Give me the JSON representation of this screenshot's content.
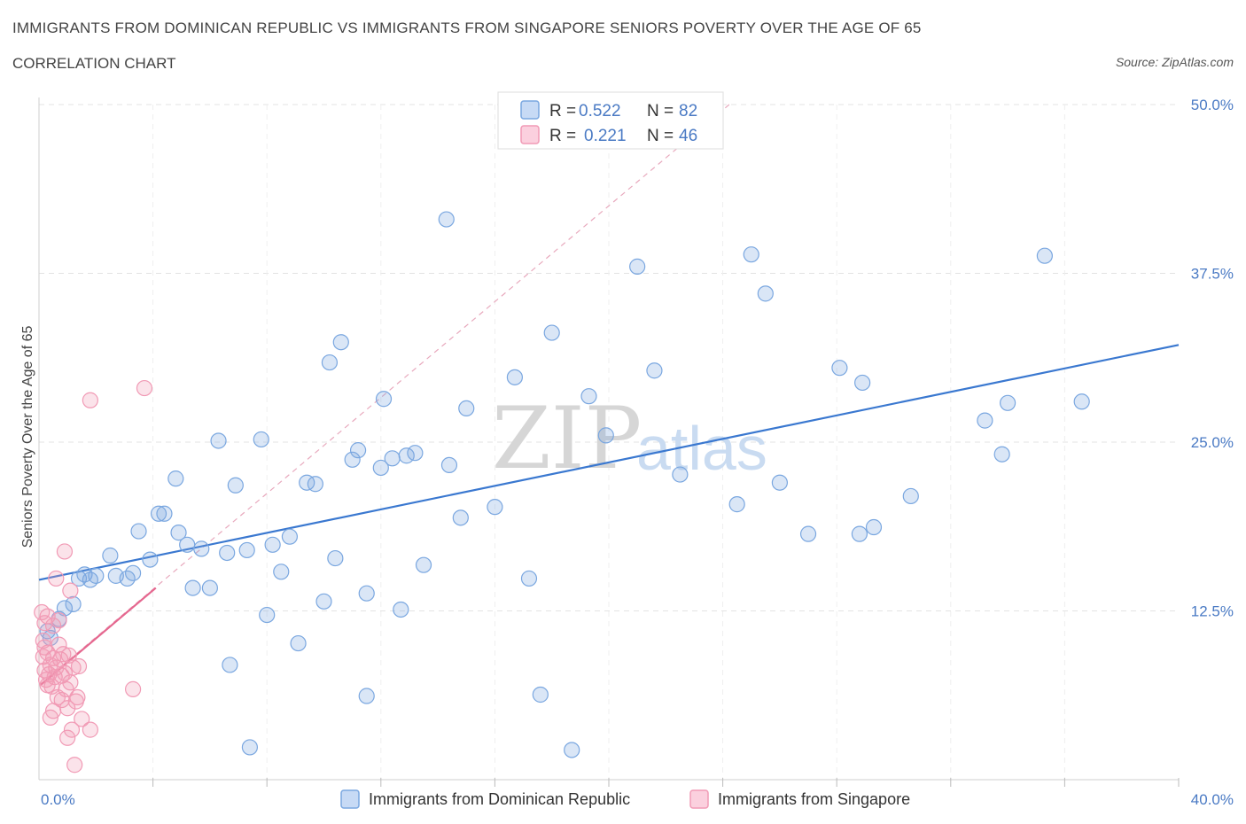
{
  "title": "IMMIGRANTS FROM DOMINICAN REPUBLIC VS IMMIGRANTS FROM SINGAPORE SENIORS POVERTY OVER THE AGE OF 65",
  "subtitle": "CORRELATION CHART",
  "source": "Source: ZipAtlas.com",
  "watermark": {
    "zip": "ZIP",
    "atlas": "atlas"
  },
  "chart_data": {
    "type": "scatter",
    "ylabel": "Seniors Poverty Over the Age of 65",
    "xlim": [
      0,
      40
    ],
    "ylim": [
      0,
      50
    ],
    "x_tick_labels": [
      {
        "value": 0,
        "label": "0.0%"
      },
      {
        "value": 40,
        "label": "40.0%"
      }
    ],
    "y_tick_labels": [
      {
        "value": 12.5,
        "label": "12.5%"
      },
      {
        "value": 25,
        "label": "25.0%"
      },
      {
        "value": 37.5,
        "label": "37.5%"
      },
      {
        "value": 50,
        "label": "50.0%"
      }
    ],
    "grid": true,
    "legend_position": "top-center",
    "series": [
      {
        "name": "Immigrants from Dominican Republic",
        "color": "#7aa7e0",
        "line_color": "#3a78d0",
        "R": "0.522",
        "N": "82",
        "trend": {
          "x": [
            0,
            40
          ],
          "y": [
            14.8,
            32.2
          ]
        },
        "points": [
          [
            0.4,
            10.5
          ],
          [
            0.7,
            11.9
          ],
          [
            0.9,
            12.7
          ],
          [
            1.2,
            13.0
          ],
          [
            1.4,
            14.9
          ],
          [
            1.6,
            15.2
          ],
          [
            1.8,
            14.8
          ],
          [
            2.0,
            15.1
          ],
          [
            2.5,
            16.6
          ],
          [
            2.7,
            15.1
          ],
          [
            3.1,
            14.9
          ],
          [
            3.3,
            15.3
          ],
          [
            3.5,
            18.4
          ],
          [
            3.9,
            16.3
          ],
          [
            4.2,
            19.7
          ],
          [
            4.4,
            19.7
          ],
          [
            4.8,
            22.3
          ],
          [
            4.9,
            18.3
          ],
          [
            5.2,
            17.4
          ],
          [
            5.4,
            14.2
          ],
          [
            5.7,
            17.1
          ],
          [
            6.0,
            14.2
          ],
          [
            6.3,
            25.1
          ],
          [
            6.6,
            16.8
          ],
          [
            6.7,
            8.5
          ],
          [
            6.9,
            21.8
          ],
          [
            7.3,
            17.0
          ],
          [
            7.4,
            2.4
          ],
          [
            7.8,
            25.2
          ],
          [
            8.0,
            12.2
          ],
          [
            8.2,
            17.4
          ],
          [
            8.5,
            15.4
          ],
          [
            8.8,
            18.0
          ],
          [
            9.1,
            10.1
          ],
          [
            9.4,
            22.0
          ],
          [
            9.7,
            21.9
          ],
          [
            10.0,
            13.2
          ],
          [
            10.2,
            30.9
          ],
          [
            10.4,
            16.4
          ],
          [
            10.6,
            32.4
          ],
          [
            11.0,
            23.7
          ],
          [
            11.2,
            24.4
          ],
          [
            11.5,
            6.2
          ],
          [
            11.5,
            13.8
          ],
          [
            12.0,
            23.1
          ],
          [
            12.1,
            28.2
          ],
          [
            12.4,
            23.8
          ],
          [
            12.7,
            12.6
          ],
          [
            12.9,
            24.0
          ],
          [
            13.2,
            24.2
          ],
          [
            13.5,
            15.9
          ],
          [
            14.3,
            41.5
          ],
          [
            14.4,
            23.3
          ],
          [
            14.8,
            19.4
          ],
          [
            15.0,
            27.5
          ],
          [
            16.0,
            20.2
          ],
          [
            16.7,
            29.8
          ],
          [
            17.2,
            14.9
          ],
          [
            17.6,
            6.3
          ],
          [
            18.0,
            33.1
          ],
          [
            18.7,
            2.2
          ],
          [
            19.3,
            28.4
          ],
          [
            19.9,
            25.5
          ],
          [
            21.0,
            38.0
          ],
          [
            21.6,
            30.3
          ],
          [
            22.5,
            22.6
          ],
          [
            24.5,
            20.4
          ],
          [
            25.0,
            38.9
          ],
          [
            25.5,
            36.0
          ],
          [
            26.0,
            22.0
          ],
          [
            27.0,
            18.2
          ],
          [
            28.1,
            30.5
          ],
          [
            28.8,
            18.2
          ],
          [
            28.9,
            29.4
          ],
          [
            29.3,
            18.7
          ],
          [
            30.6,
            21.0
          ],
          [
            33.2,
            26.6
          ],
          [
            33.8,
            24.1
          ],
          [
            34.0,
            27.9
          ],
          [
            35.3,
            38.8
          ],
          [
            36.6,
            28.0
          ],
          [
            0.3,
            11.0
          ]
        ]
      },
      {
        "name": "Immigrants from Singapore",
        "color": "#f19ab5",
        "line_color": "#e5678f",
        "R": "0.221",
        "N": "46",
        "trend": {
          "x": [
            0.05,
            4.1
          ],
          "y": [
            7.0,
            14.2
          ]
        },
        "dashed_trend": {
          "x": [
            0,
            40
          ],
          "y": [
            7.0,
            78.0
          ]
        },
        "points": [
          [
            0.1,
            12.4
          ],
          [
            0.15,
            10.3
          ],
          [
            0.2,
            9.8
          ],
          [
            0.2,
            8.1
          ],
          [
            0.25,
            7.4
          ],
          [
            0.3,
            12.1
          ],
          [
            0.3,
            9.4
          ],
          [
            0.35,
            7.8
          ],
          [
            0.4,
            8.5
          ],
          [
            0.45,
            6.9
          ],
          [
            0.5,
            11.4
          ],
          [
            0.5,
            9.0
          ],
          [
            0.55,
            7.6
          ],
          [
            0.6,
            14.9
          ],
          [
            0.6,
            8.3
          ],
          [
            0.65,
            6.1
          ],
          [
            0.7,
            11.8
          ],
          [
            0.7,
            10.0
          ],
          [
            0.75,
            8.9
          ],
          [
            0.8,
            7.7
          ],
          [
            0.8,
            5.9
          ],
          [
            0.85,
            9.3
          ],
          [
            0.9,
            16.9
          ],
          [
            0.9,
            7.9
          ],
          [
            0.95,
            6.7
          ],
          [
            1.0,
            5.3
          ],
          [
            1.0,
            3.1
          ],
          [
            1.05,
            9.2
          ],
          [
            1.1,
            14.0
          ],
          [
            1.1,
            7.2
          ],
          [
            1.15,
            3.7
          ],
          [
            1.2,
            8.3
          ],
          [
            1.25,
            1.1
          ],
          [
            1.3,
            5.8
          ],
          [
            1.35,
            6.1
          ],
          [
            1.4,
            8.4
          ],
          [
            1.5,
            4.5
          ],
          [
            1.8,
            3.7
          ],
          [
            3.3,
            6.7
          ],
          [
            3.7,
            29.0
          ],
          [
            1.8,
            28.1
          ],
          [
            0.4,
            4.6
          ],
          [
            0.3,
            7.0
          ],
          [
            0.2,
            11.6
          ],
          [
            0.5,
            5.1
          ],
          [
            0.15,
            9.1
          ]
        ]
      }
    ]
  }
}
